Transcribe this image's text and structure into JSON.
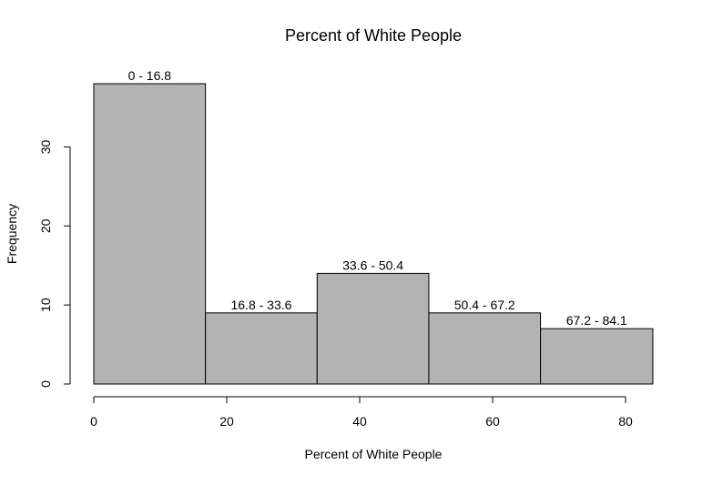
{
  "chart_data": {
    "type": "bar",
    "title": "Percent of White People",
    "xlabel": "Percent of White People",
    "ylabel": "Frequency",
    "bins": [
      {
        "start": 0,
        "end": 16.8,
        "count": 38,
        "label": "0 - 16.8"
      },
      {
        "start": 16.8,
        "end": 33.6,
        "count": 9,
        "label": "16.8 - 33.6"
      },
      {
        "start": 33.6,
        "end": 50.4,
        "count": 14,
        "label": "33.6 - 50.4"
      },
      {
        "start": 50.4,
        "end": 67.2,
        "count": 9,
        "label": "50.4 - 67.2"
      },
      {
        "start": 67.2,
        "end": 84.1,
        "count": 7,
        "label": "67.2 - 84.1"
      }
    ],
    "x_ticks": [
      0,
      20,
      40,
      60,
      80
    ],
    "y_ticks": [
      0,
      10,
      20,
      30
    ],
    "xlim": [
      0,
      84.1
    ],
    "ylim": [
      0,
      38
    ],
    "grid": false,
    "bar_color": "#b3b3b3",
    "border_color": "#000000"
  }
}
